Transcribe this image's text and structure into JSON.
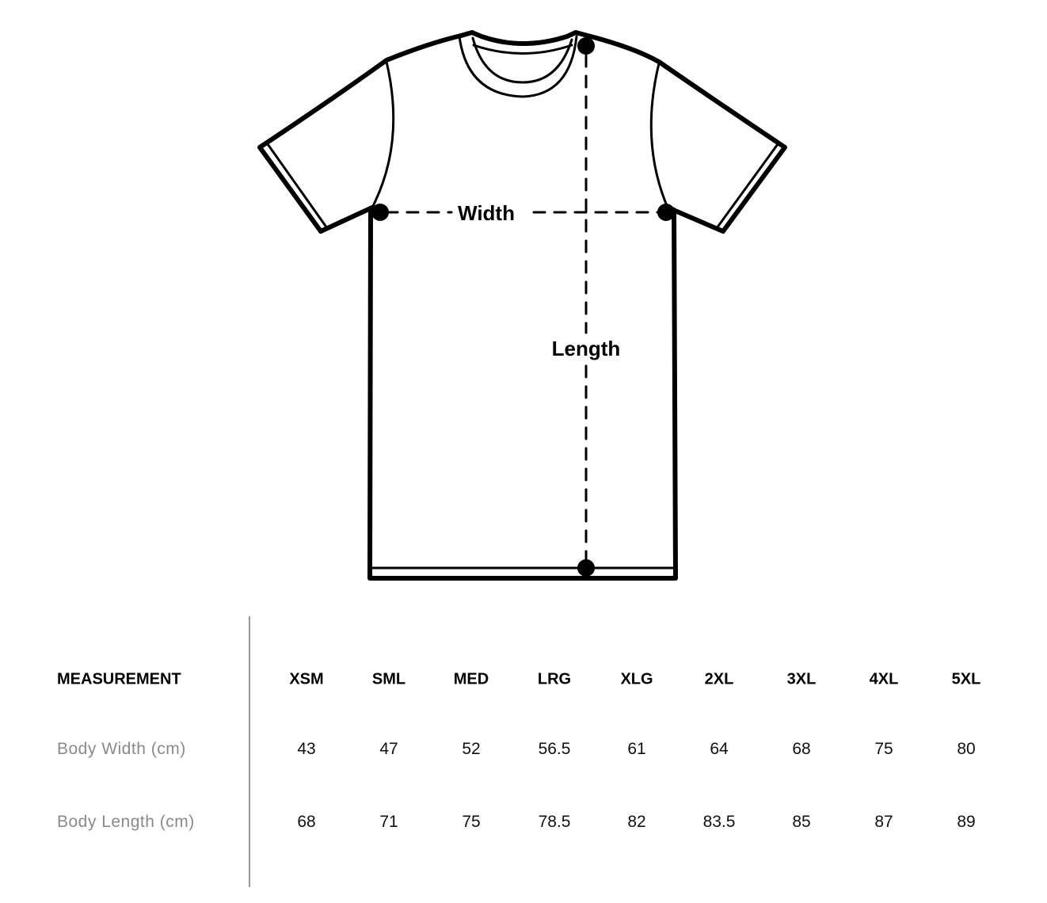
{
  "diagram": {
    "width_label": "Width",
    "length_label": "Length"
  },
  "table": {
    "header_label": "MEASUREMENT",
    "sizes": [
      "XSM",
      "SML",
      "MED",
      "LRG",
      "XLG",
      "2XL",
      "3XL",
      "4XL",
      "5XL"
    ],
    "rows": [
      {
        "label": "Body Width (cm)",
        "values": [
          "43",
          "47",
          "52",
          "56.5",
          "61",
          "64",
          "68",
          "75",
          "80"
        ]
      },
      {
        "label": "Body Length (cm)",
        "values": [
          "68",
          "71",
          "75",
          "78.5",
          "82",
          "83.5",
          "85",
          "87",
          "89"
        ]
      }
    ]
  }
}
